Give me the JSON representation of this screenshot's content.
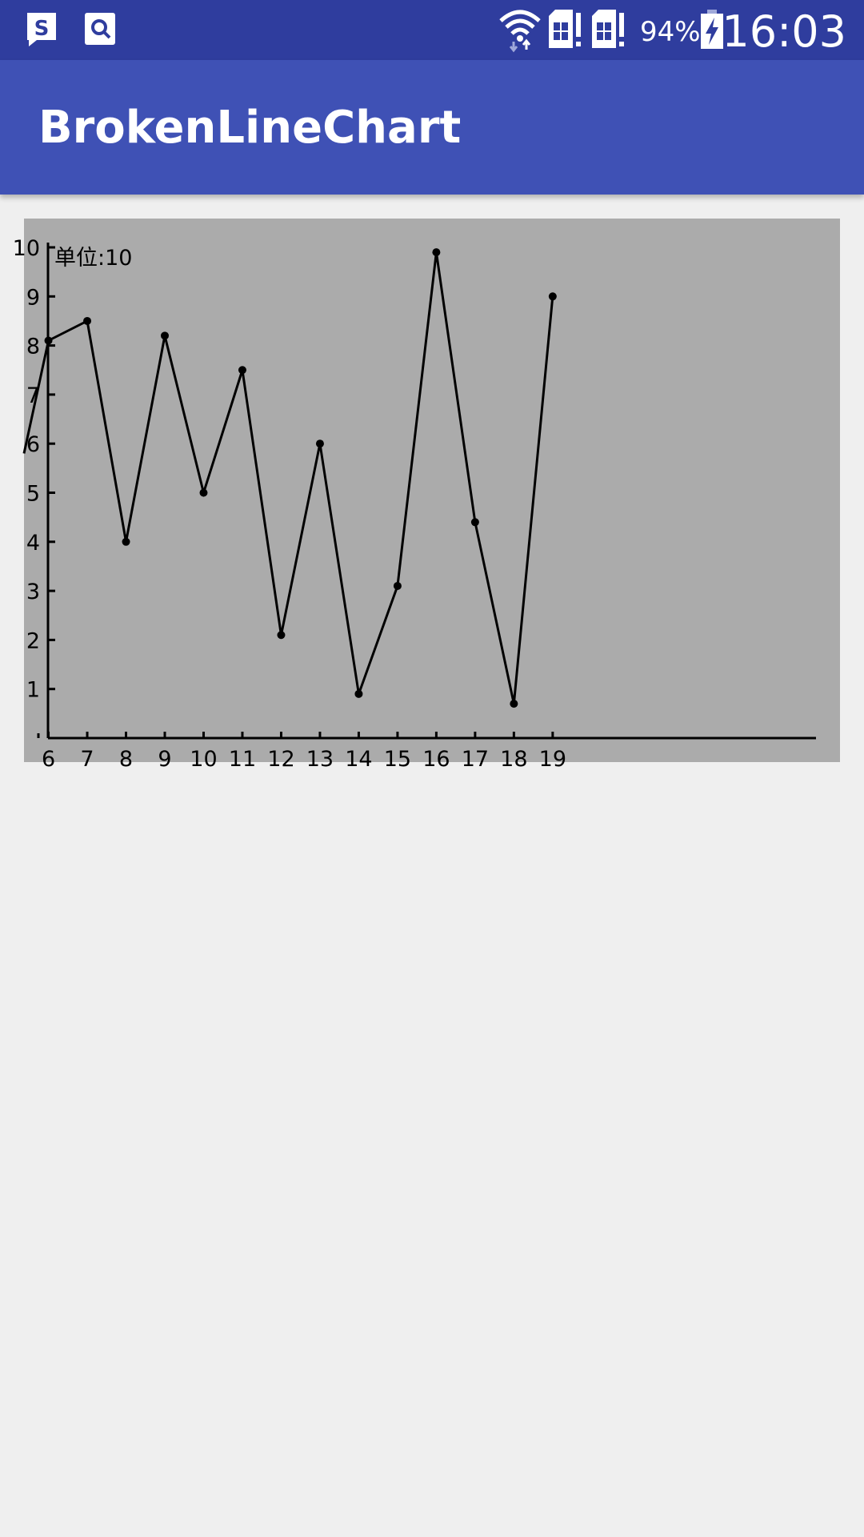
{
  "status_bar": {
    "left_icons": [
      "sim-toolkit-icon",
      "search-app-icon"
    ],
    "right_icons": [
      "wifi-icon",
      "sim1-icon",
      "sim2-icon",
      "battery-charging-icon"
    ],
    "battery_percent": "94%",
    "time": "16:03"
  },
  "app_bar": {
    "title": "BrokenLineChart"
  },
  "colors": {
    "status_bar": "#2f3d9e",
    "app_bar": "#3f51b5",
    "chart_background": "#ababab",
    "page_background": "#efefef",
    "line": "#000000"
  },
  "chart_data": {
    "type": "line",
    "unit_label": "单位:10",
    "x": [
      6,
      7,
      8,
      9,
      10,
      11,
      12,
      13,
      14,
      15,
      16,
      17,
      18,
      19
    ],
    "x_tick_labels": [
      "6",
      "7",
      "8",
      "9",
      "10",
      "11",
      "12",
      "13",
      "14",
      "15",
      "16",
      "17",
      "18",
      "19"
    ],
    "y_tick_labels": [
      "1",
      "2",
      "3",
      "4",
      "5",
      "6",
      "7",
      "8",
      "9",
      "10"
    ],
    "series": [
      {
        "values": [
          8.1,
          8.5,
          4.0,
          8.2,
          5.0,
          7.5,
          2.1,
          6.0,
          0.9,
          3.1,
          9.9,
          4.4,
          0.7,
          9.0
        ]
      }
    ],
    "leading_value": 5.8,
    "xlim": [
      5.7,
      25.5
    ],
    "ylim": [
      0,
      10
    ],
    "grid": false,
    "legend": "none"
  }
}
